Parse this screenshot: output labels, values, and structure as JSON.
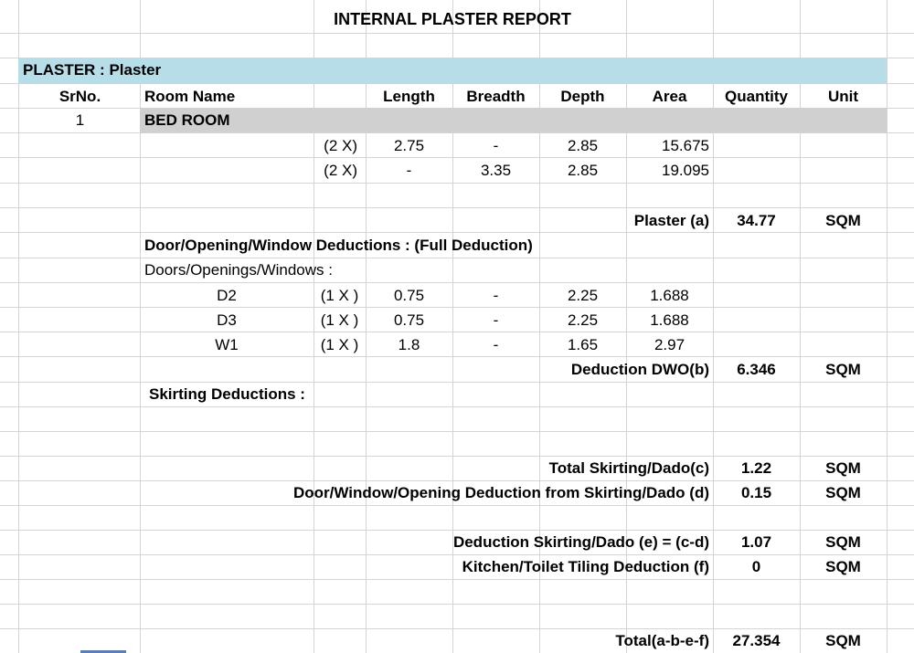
{
  "report_title": "INTERNAL PLASTER REPORT",
  "section_label": "PLASTER : Plaster",
  "headers": {
    "srno": "SrNo.",
    "room_name": "Room Name",
    "length": "Length",
    "breadth": "Breadth",
    "depth": "Depth",
    "area": "Area",
    "quantity": "Quantity",
    "unit": "Unit"
  },
  "room": {
    "srno": "1",
    "name": "BED ROOM"
  },
  "dimension_rows": [
    {
      "mult": "(2 X)",
      "length": "2.75",
      "breadth": "-",
      "depth": "2.85",
      "area": "15.675"
    },
    {
      "mult": "(2 X)",
      "length": "-",
      "breadth": "3.35",
      "depth": "2.85",
      "area": "19.095"
    }
  ],
  "plaster_total": {
    "label": "Plaster (a)",
    "quantity": "34.77",
    "unit": "SQM"
  },
  "dwo_heading": "Door/Opening/Window Deductions : (Full Deduction)",
  "dwo_subheading": "Doors/Openings/Windows :",
  "dwo_rows": [
    {
      "name": "D2",
      "mult": "(1 X )",
      "length": "0.75",
      "breadth": "-",
      "depth": "2.25",
      "area": "1.688"
    },
    {
      "name": "D3",
      "mult": "(1 X )",
      "length": "0.75",
      "breadth": "-",
      "depth": "2.25",
      "area": "1.688"
    },
    {
      "name": "W1",
      "mult": "(1 X )",
      "length": "1.8",
      "breadth": "-",
      "depth": "1.65",
      "area": "2.97"
    }
  ],
  "dwo_total": {
    "label": "Deduction DWO(b)",
    "quantity": "6.346",
    "unit": "SQM"
  },
  "skirting_heading": "Skirting Deductions :",
  "summary": {
    "total_skirting": {
      "label": "Total Skirting/Dado(c)",
      "quantity": "1.22",
      "unit": "SQM"
    },
    "dwo_skirting": {
      "label": "Door/Window/Opening Deduction from Skirting/Dado (d)",
      "quantity": "0.15",
      "unit": "SQM"
    },
    "deduction_skirting": {
      "label": "Deduction Skirting/Dado (e) = (c-d)",
      "quantity": "1.07",
      "unit": "SQM"
    },
    "kitchen_tiling": {
      "label": "Kitchen/Toilet Tiling Deduction (f)",
      "quantity": "0",
      "unit": "SQM"
    },
    "total": {
      "label": "Total(a-b-e-f)",
      "quantity": "27.354",
      "unit": "SQM"
    }
  }
}
